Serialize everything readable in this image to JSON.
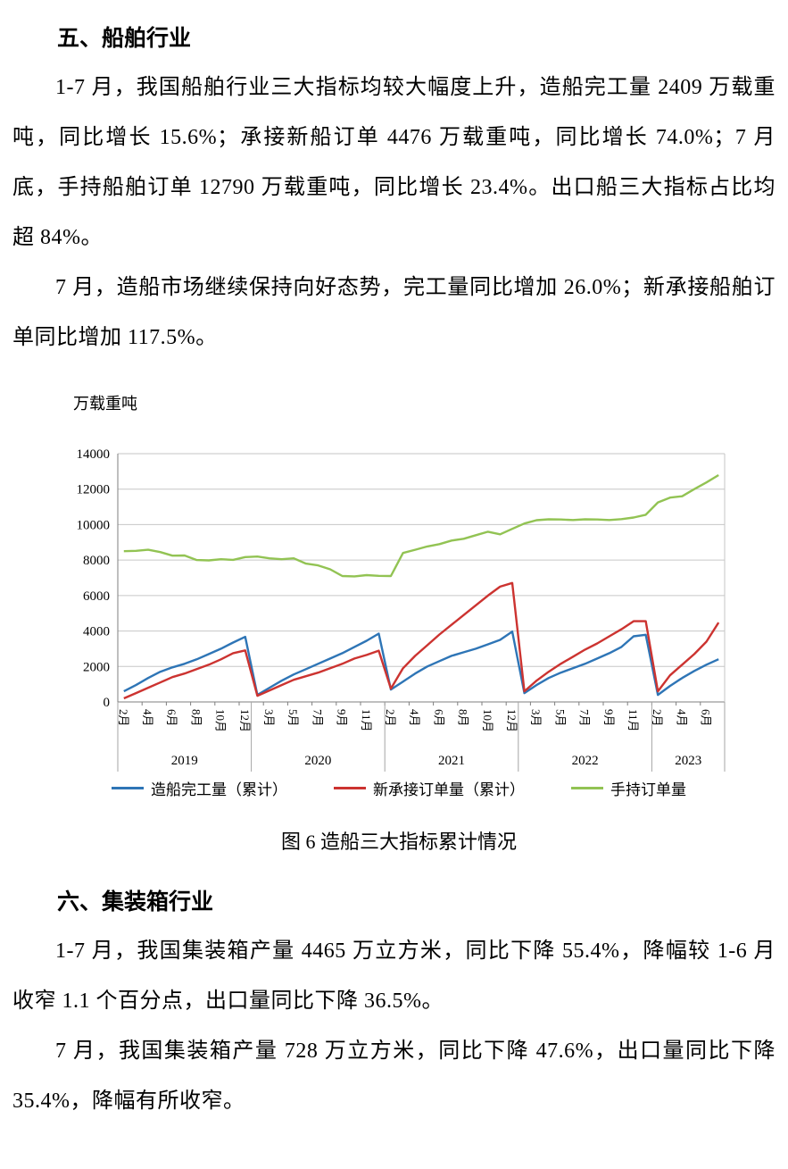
{
  "page": {
    "section_ships": {
      "heading": "五、船舶行业",
      "para1": "1-7 月，我国船舶行业三大指标均较大幅度上升，造船完工量 2409 万载重吨，同比增长 15.6%；承接新船订单 4476 万载重吨，同比增长 74.0%；7 月底，手持船舶订单 12790 万载重吨，同比增长 23.4%。出口船三大指标占比均超 84%。",
      "para2": "7 月，造船市场继续保持向好态势，完工量同比增加 26.0%；新承接船舶订单同比增加 117.5%。"
    },
    "figure": {
      "caption": "图 6  造船三大指标累计情况"
    },
    "section_containers": {
      "heading": "六、集装箱行业",
      "para1": "1-7 月，我国集装箱产量 4465 万立方米，同比下降 55.4%，降幅较 1-6 月收窄 1.1 个百分点，出口量同比下降 36.5%。",
      "para2": "7 月，我国集装箱产量 728 万立方米，同比下降 47.6%，出口量同比下降 35.4%，降幅有所收窄。"
    }
  },
  "chart_data": {
    "type": "line",
    "title": "",
    "ylabel": "万载重吨",
    "ylim": [
      0,
      14000
    ],
    "ytick_step": 2000,
    "grid": true,
    "legend_position": "bottom",
    "x_label_every": 2,
    "x_tick_labels": [
      "2月",
      "4月",
      "6月",
      "8月",
      "10月",
      "12月",
      "3月",
      "5月",
      "7月",
      "9月",
      "11月",
      "2月",
      "4月",
      "6月",
      "8月",
      "10月",
      "12月",
      "3月",
      "5月",
      "7月",
      "9月",
      "11月",
      "2月",
      "4月",
      "6月"
    ],
    "year_groups": [
      {
        "label": "2019",
        "points": 11
      },
      {
        "label": "2020",
        "points": 11
      },
      {
        "label": "2021",
        "points": 11
      },
      {
        "label": "2022",
        "points": 11
      },
      {
        "label": "2023",
        "points": 6
      }
    ],
    "series": [
      {
        "name": "造船完工量（累计）",
        "color": "#2E75B6",
        "values": [
          600,
          950,
          1350,
          1700,
          1950,
          2150,
          2400,
          2700,
          3000,
          3350,
          3672,
          400,
          800,
          1200,
          1550,
          1850,
          2150,
          2450,
          2750,
          3100,
          3450,
          3853,
          700,
          1150,
          1600,
          2000,
          2300,
          2600,
          2800,
          3000,
          3250,
          3500,
          3970,
          500,
          950,
          1350,
          1650,
          1900,
          2150,
          2450,
          2750,
          3100,
          3700,
          3786,
          400,
          900,
          1350,
          1750,
          2100,
          2409
        ]
      },
      {
        "name": "新承接订单量（累计）",
        "color": "#CC3330",
        "values": [
          200,
          500,
          800,
          1100,
          1400,
          1600,
          1850,
          2100,
          2400,
          2750,
          2907,
          350,
          650,
          950,
          1250,
          1450,
          1650,
          1900,
          2150,
          2450,
          2650,
          2893,
          750,
          1900,
          2600,
          3200,
          3800,
          4350,
          4900,
          5450,
          6000,
          6500,
          6707,
          600,
          1200,
          1700,
          2150,
          2550,
          2950,
          3300,
          3700,
          4100,
          4550,
          4552,
          600,
          1500,
          2100,
          2700,
          3400,
          4476
        ]
      },
      {
        "name": "手持订单量",
        "color": "#92C353",
        "values": [
          8500,
          8520,
          8580,
          8450,
          8250,
          8260,
          8000,
          7980,
          8050,
          8010,
          8166,
          8200,
          8100,
          8050,
          8100,
          7800,
          7700,
          7480,
          7100,
          7080,
          7150,
          7111,
          7100,
          8400,
          8580,
          8770,
          8900,
          9100,
          9200,
          9400,
          9600,
          9450,
          9759,
          10060,
          10250,
          10300,
          10290,
          10260,
          10300,
          10290,
          10260,
          10310,
          10400,
          10557,
          11250,
          11520,
          11600,
          12000,
          12380,
          12790
        ]
      }
    ]
  }
}
